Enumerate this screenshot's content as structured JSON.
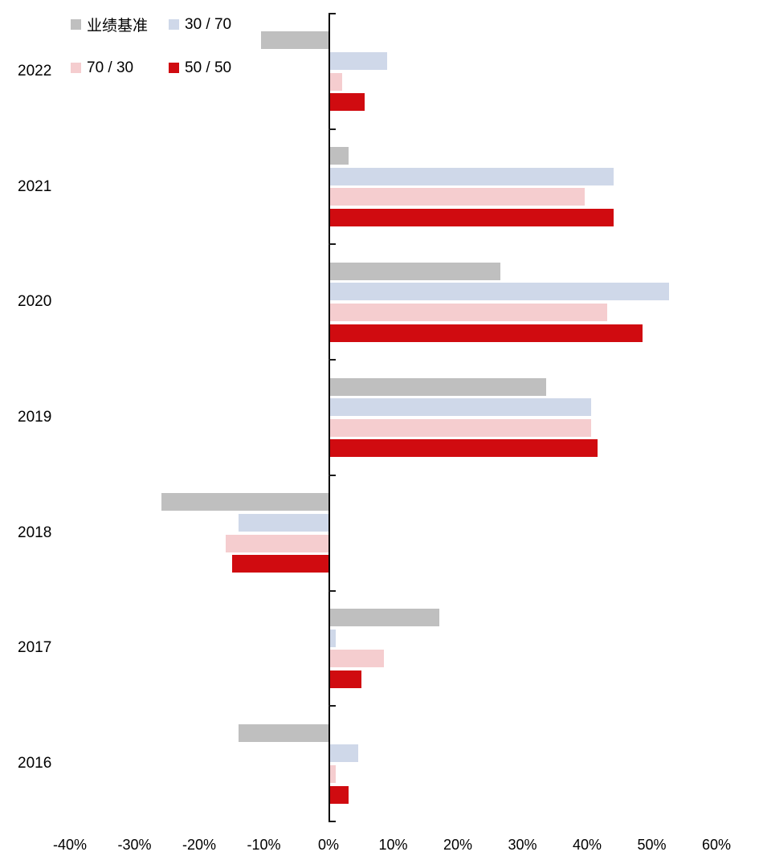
{
  "chart_data": {
    "type": "bar",
    "orientation": "horizontal",
    "title": "",
    "categories": [
      "2022",
      "2021",
      "2020",
      "2019",
      "2018",
      "2017",
      "2016"
    ],
    "series": [
      {
        "name": "业绩基准",
        "color": "#bfbfbf",
        "values": [
          -10.5,
          3,
          26.5,
          33.5,
          -26,
          17,
          -14
        ]
      },
      {
        "name": "30 / 70",
        "color": "#cfd8e9",
        "values": [
          9,
          44,
          52.5,
          40.5,
          -14,
          1,
          4.5
        ]
      },
      {
        "name": "70 / 30",
        "color": "#f5cdcf",
        "values": [
          2,
          39.5,
          43,
          40.5,
          -16,
          8.5,
          1
        ]
      },
      {
        "name": "50 / 50",
        "color": "#d00b10",
        "values": [
          5.5,
          44,
          48.5,
          41.5,
          -15,
          5,
          3
        ]
      }
    ],
    "x_axis": {
      "min": -40,
      "max": 60,
      "tick_labels": [
        "-40%",
        "-30%",
        "-20%",
        "-10%",
        "0%",
        "10%",
        "20%",
        "30%",
        "40%",
        "50%",
        "60%"
      ],
      "tick_values": [
        -40,
        -30,
        -20,
        -10,
        0,
        10,
        20,
        30,
        40,
        50,
        60
      ]
    },
    "grid": "off",
    "legend_position": "top-left",
    "axis_color": "#000000"
  }
}
